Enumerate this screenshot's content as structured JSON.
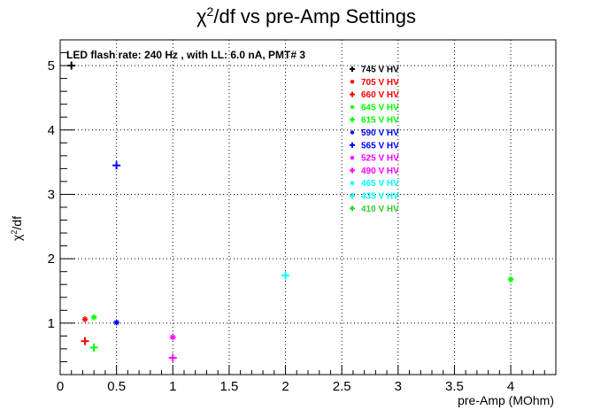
{
  "chart_data": {
    "type": "scatter",
    "title_main": "χ",
    "title_sup": "2",
    "title_rest": "/df vs pre-Amp Settings",
    "annotation": "LED flash rate: 240 Hz , with LL: 6.0 nA, PMT# 3",
    "xlabel": "pre-Amp (MOhm)",
    "ylabel_main": "χ",
    "ylabel_sup": "2",
    "ylabel_rest": "/df",
    "xlim": [
      0,
      4.4
    ],
    "ylim": [
      0.2,
      5.4
    ],
    "grid": true,
    "legend_placement": "top-right",
    "x_ticks": [
      "0",
      "0.5",
      "1",
      "1.5",
      "2",
      "2.5",
      "3",
      "3.5",
      "4"
    ],
    "y_ticks": [
      "1",
      "2",
      "3",
      "4",
      "5"
    ],
    "series": [
      {
        "name": "745 V HV",
        "color": "#000000",
        "marker": "plus",
        "points": [
          [
            0.1,
            5.0
          ]
        ]
      },
      {
        "name": "705 V HV",
        "color": "#ff0000",
        "marker": "star",
        "points": [
          [
            0.22,
            1.06
          ]
        ]
      },
      {
        "name": "660 V HV",
        "color": "#ff0000",
        "marker": "plus",
        "points": [
          [
            0.22,
            0.72
          ]
        ]
      },
      {
        "name": "645 V HV",
        "color": "#00ff00",
        "marker": "star",
        "points": [
          [
            0.3,
            1.09
          ],
          [
            4.0,
            1.68
          ]
        ]
      },
      {
        "name": "615 V HV",
        "color": "#00ff00",
        "marker": "plus",
        "points": [
          [
            0.3,
            0.62
          ]
        ]
      },
      {
        "name": "590 V HV",
        "color": "#0000ff",
        "marker": "star",
        "points": [
          [
            0.5,
            1.01
          ]
        ]
      },
      {
        "name": "565 V HV",
        "color": "#0000ff",
        "marker": "plus",
        "points": [
          [
            0.5,
            3.45
          ]
        ]
      },
      {
        "name": "525 V HV",
        "color": "#ff00ff",
        "marker": "star",
        "points": [
          [
            1.0,
            0.78
          ]
        ]
      },
      {
        "name": "490 V HV",
        "color": "#ff00ff",
        "marker": "plus",
        "points": [
          [
            1.0,
            0.46
          ]
        ]
      },
      {
        "name": "465 V HV",
        "color": "#00ffff",
        "marker": "star",
        "points": []
      },
      {
        "name": "435 V HV",
        "color": "#00ffff",
        "marker": "plus",
        "points": [
          [
            2.0,
            1.74
          ]
        ]
      },
      {
        "name": "410 V HV",
        "color": "#33cc33",
        "marker": "plus",
        "points": []
      }
    ]
  }
}
